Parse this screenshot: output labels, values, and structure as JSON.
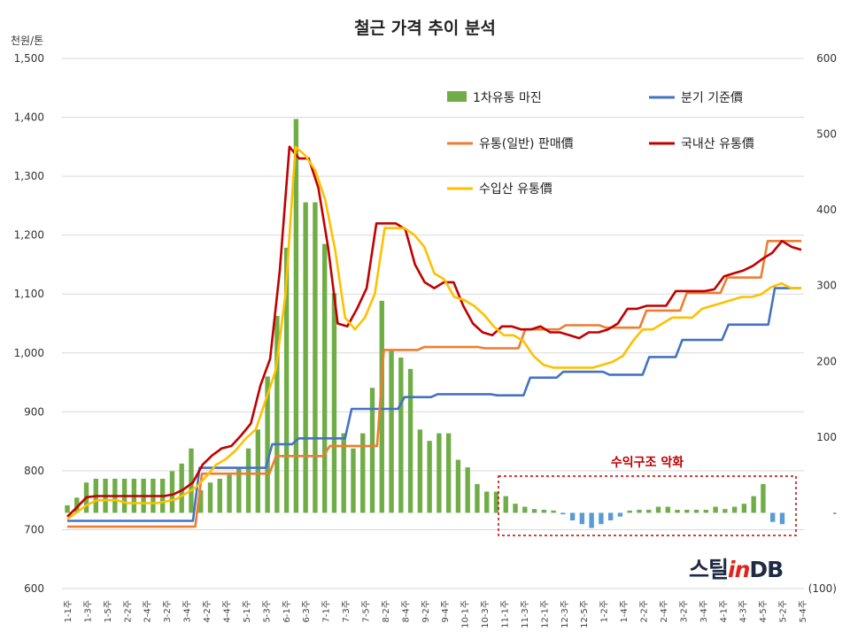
{
  "chart_data": {
    "type": "line",
    "title": "철근 가격 추이 분석",
    "y_unit": "천원/톤",
    "ylim": [
      600,
      1500
    ],
    "yticks": [
      "600",
      "700",
      "800",
      "900",
      "1,000",
      "1,100",
      "1,200",
      "1,300",
      "1,400",
      "1,500"
    ],
    "y2lim": [
      -100,
      600
    ],
    "y2ticks": [
      "(100)",
      "-",
      "100",
      "200",
      "300",
      "400",
      "500",
      "600"
    ],
    "x_tick_labels": [
      "1-1주",
      "1-3주",
      "1-5주",
      "2-2주",
      "2-4주",
      "3-2주",
      "3-4주",
      "4-2주",
      "4-4주",
      "5-1주",
      "5-3주",
      "6-1주",
      "6-3주",
      "7-1주",
      "7-3주",
      "7-5주",
      "8-2주",
      "8-4주",
      "9-2주",
      "9-4주",
      "10-1주",
      "10-3주",
      "11-1주",
      "11-3주",
      "12-1주",
      "12-3주",
      "12-5주",
      "1-2주",
      "1-4주",
      "2-2주",
      "2-4주",
      "3-2주",
      "3-4주",
      "4-1주",
      "4-3주",
      "4-5주",
      "5-2주",
      "5-4주"
    ],
    "grid": true,
    "legend_position": "top-right",
    "annotation": "수익구조 악화",
    "colors": {
      "margin_positive": "#70ad47",
      "margin_negative": "#5b9bd5",
      "quarter_price": "#4472c4",
      "distribution_price": "#ed7d31",
      "domestic_price": "#c00000",
      "import_price": "#ffc000"
    },
    "bar_series": {
      "name": "1차유통 마진",
      "axis": "right",
      "values": [
        10,
        20,
        40,
        45,
        45,
        45,
        45,
        45,
        45,
        45,
        45,
        55,
        65,
        85,
        30,
        40,
        45,
        50,
        60,
        85,
        110,
        180,
        260,
        350,
        520,
        410,
        410,
        355,
        290,
        105,
        85,
        105,
        165,
        280,
        215,
        205,
        190,
        110,
        95,
        105,
        105,
        70,
        60,
        38,
        28,
        28,
        22,
        12,
        8,
        5,
        4,
        3,
        -2,
        -10,
        -15,
        -20,
        -15,
        -10,
        -5,
        3,
        4,
        4,
        8,
        8,
        4,
        4,
        4,
        4,
        8,
        5,
        8,
        12,
        22,
        38,
        -12,
        -15
      ]
    },
    "line_series": [
      {
        "name": "분기 기준價",
        "values": [
          715,
          715,
          715,
          715,
          715,
          715,
          715,
          715,
          715,
          715,
          715,
          715,
          715,
          715,
          715,
          715,
          715,
          715,
          715,
          715,
          805,
          805,
          805,
          805,
          805,
          805,
          805,
          805,
          805,
          805,
          805,
          845,
          845,
          845,
          845,
          855,
          855,
          855,
          855,
          855,
          855,
          855,
          855,
          905,
          905,
          905,
          905,
          905,
          905,
          905,
          905,
          925,
          925,
          925,
          925,
          925,
          930,
          930,
          930,
          930,
          930,
          930,
          930,
          930,
          930,
          928,
          928,
          928,
          928,
          928,
          958,
          958,
          958,
          958,
          958,
          968,
          968,
          968,
          968,
          968,
          968,
          968,
          963,
          963,
          963,
          963,
          963,
          963,
          993,
          993,
          993,
          993,
          993,
          1022,
          1022,
          1022,
          1022,
          1022,
          1022,
          1022,
          1048,
          1048,
          1048,
          1048,
          1048,
          1048,
          1048,
          1110,
          1110,
          1110,
          1110,
          1110
        ]
      },
      {
        "name": "유통(일반) 판매價",
        "values": [
          705,
          705,
          705,
          705,
          705,
          705,
          705,
          705,
          705,
          705,
          705,
          705,
          705,
          705,
          705,
          705,
          705,
          705,
          705,
          705,
          795,
          795,
          795,
          795,
          795,
          795,
          795,
          795,
          795,
          795,
          795,
          825,
          825,
          825,
          825,
          825,
          825,
          825,
          825,
          842,
          842,
          842,
          842,
          842,
          842,
          842,
          842,
          1005,
          1005,
          1005,
          1005,
          1005,
          1005,
          1010,
          1010,
          1010,
          1010,
          1010,
          1010,
          1010,
          1010,
          1010,
          1008,
          1008,
          1008,
          1008,
          1008,
          1008,
          1040,
          1040,
          1040,
          1040,
          1040,
          1040,
          1047,
          1047,
          1047,
          1047,
          1047,
          1047,
          1043,
          1043,
          1043,
          1043,
          1043,
          1043,
          1072,
          1072,
          1072,
          1072,
          1072,
          1072,
          1102,
          1102,
          1102,
          1102,
          1102,
          1102,
          1128,
          1128,
          1128,
          1128,
          1128,
          1128,
          1190,
          1190,
          1190,
          1190,
          1190,
          1190
        ]
      },
      {
        "name": "국내산 유통價",
        "values": [
          722,
          738,
          755,
          757,
          757,
          757,
          757,
          757,
          757,
          757,
          757,
          760,
          768,
          780,
          810,
          826,
          838,
          842,
          860,
          880,
          945,
          990,
          1140,
          1350,
          1330,
          1330,
          1280,
          1180,
          1050,
          1045,
          1075,
          1110,
          1220,
          1220,
          1220,
          1210,
          1150,
          1120,
          1110,
          1120,
          1120,
          1080,
          1050,
          1035,
          1030,
          1045,
          1045,
          1040,
          1040,
          1045,
          1035,
          1035,
          1030,
          1025,
          1035,
          1035,
          1040,
          1050,
          1075,
          1075,
          1080,
          1080,
          1080,
          1105,
          1105,
          1105,
          1105,
          1108,
          1130,
          1135,
          1140,
          1148,
          1160,
          1170,
          1190,
          1180,
          1175
        ]
      },
      {
        "name": "수입산 유통價",
        "values": [
          718,
          730,
          742,
          750,
          750,
          750,
          745,
          745,
          745,
          745,
          748,
          752,
          762,
          772,
          790,
          810,
          820,
          835,
          855,
          870,
          920,
          970,
          1100,
          1350,
          1335,
          1310,
          1260,
          1175,
          1060,
          1040,
          1060,
          1100,
          1212,
          1212,
          1212,
          1200,
          1180,
          1135,
          1125,
          1095,
          1090,
          1080,
          1065,
          1045,
          1030,
          1030,
          1020,
          995,
          980,
          975,
          975,
          975,
          975,
          975,
          980,
          985,
          995,
          1020,
          1040,
          1040,
          1050,
          1060,
          1060,
          1060,
          1075,
          1080,
          1085,
          1090,
          1095,
          1095,
          1100,
          1112,
          1118,
          1110,
          1110
        ]
      }
    ]
  },
  "legend": {
    "bar_label": "1차유통 마진",
    "quarter_label": "분기 기준價",
    "distribution_label": "유통(일반) 판매價",
    "domestic_label": "국내산 유통價",
    "import_label": "수입산 유통價"
  },
  "logo": {
    "part1": "스틸",
    "part2": "in",
    "part3": "DB"
  }
}
